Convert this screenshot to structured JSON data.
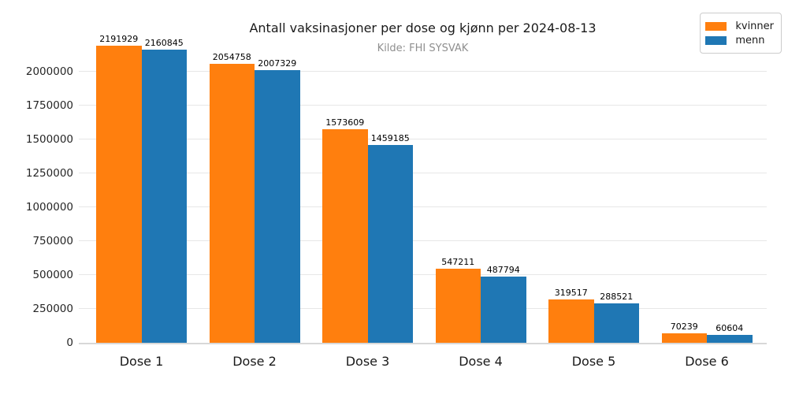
{
  "chart": {
    "title": "Antall vaksinasjoner per dose og kjønn per 2024-08-13",
    "subtitle": "Kilde: FHI SYSVAK"
  },
  "chart_data": {
    "type": "bar",
    "title": "Antall vaksinasjoner per dose og kjønn per 2024-08-13",
    "subtitle": "Kilde: FHI SYSVAK",
    "categories": [
      "Dose 1",
      "Dose 2",
      "Dose 3",
      "Dose 4",
      "Dose 5",
      "Dose 6"
    ],
    "series": [
      {
        "name": "kvinner",
        "color": "#ff7f0e",
        "values": [
          2191929,
          2054758,
          1573609,
          547211,
          319517,
          70239
        ]
      },
      {
        "name": "menn",
        "color": "#1f77b4",
        "values": [
          2160845,
          2007329,
          1459185,
          487794,
          288521,
          60604
        ]
      }
    ],
    "xlabel": "",
    "ylabel": "",
    "ylim": [
      0,
      2300000
    ],
    "yticks": [
      0,
      250000,
      500000,
      750000,
      1000000,
      1250000,
      1500000,
      1750000,
      2000000
    ],
    "grid": true,
    "legend_position": "upper right",
    "bar_value_labels": true
  }
}
